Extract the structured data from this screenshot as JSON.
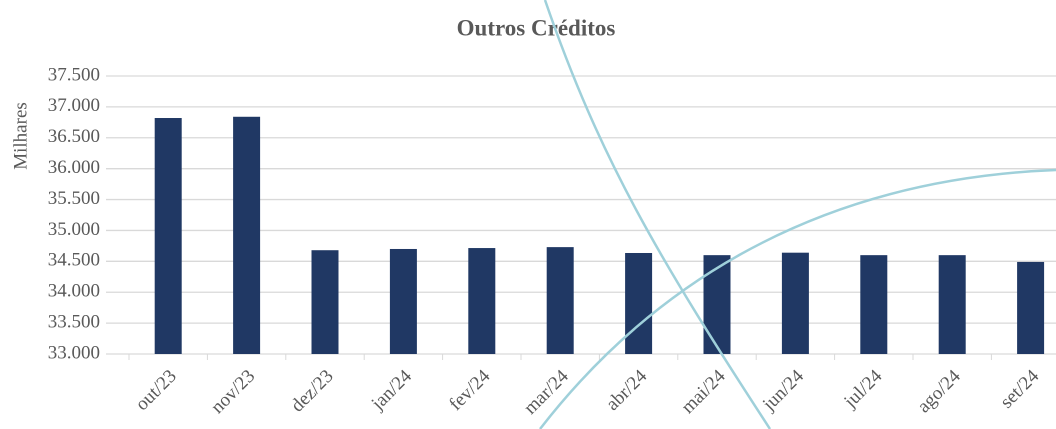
{
  "chart_data": {
    "type": "bar",
    "title": "Outros Créditos",
    "y_label": "Milhares",
    "categories": [
      "out/23",
      "nov/23",
      "dez/23",
      "jan/24",
      "fev/24",
      "mar/24",
      "abr/24",
      "mai/24",
      "jun/24",
      "jul/24",
      "ago/24",
      "set/24"
    ],
    "values": [
      36820,
      36840,
      34680,
      34700,
      34715,
      34730,
      34635,
      34600,
      34640,
      34600,
      34600,
      34490
    ],
    "color": "#203864",
    "ylim": [
      33000,
      37500
    ],
    "yticks": [
      {
        "value": 33000,
        "label": "33.000"
      },
      {
        "value": 33500,
        "label": "33.500"
      },
      {
        "value": 34000,
        "label": "34.000"
      },
      {
        "value": 34500,
        "label": "34.500"
      },
      {
        "value": 35000,
        "label": "35.000"
      },
      {
        "value": 35500,
        "label": "35.500"
      },
      {
        "value": 36000,
        "label": "36.000"
      },
      {
        "value": 36500,
        "label": "36.500"
      },
      {
        "value": 37000,
        "label": "37.000"
      },
      {
        "value": 37500,
        "label": "37.500"
      }
    ],
    "grid": true
  }
}
